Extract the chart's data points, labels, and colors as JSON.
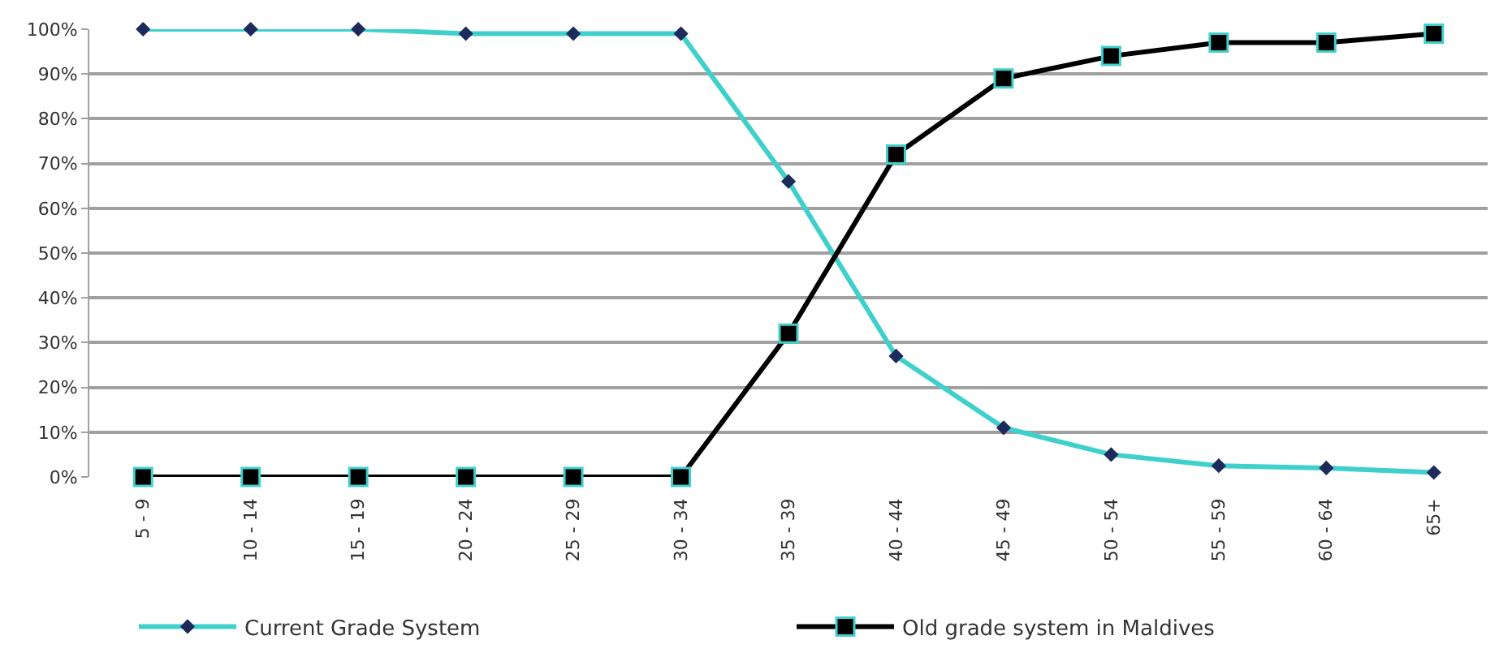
{
  "chart_data": {
    "type": "line",
    "categories": [
      "5 - 9",
      "10 - 14",
      "15 - 19",
      "20 - 24",
      "25 - 29",
      "30 - 34",
      "35 - 39",
      "40 - 44",
      "45 - 49",
      "50 - 54",
      "55 - 59",
      "60 - 64",
      "65+"
    ],
    "series": [
      {
        "name": "Current Grade System",
        "color": "#40d0cc",
        "marker": "diamond",
        "values": [
          100,
          100,
          100,
          99,
          99,
          99,
          66,
          27,
          11,
          5,
          2.5,
          2,
          1
        ]
      },
      {
        "name": "Old grade system in Maldives",
        "color": "#000000",
        "marker": "square",
        "values": [
          0,
          0,
          0,
          0,
          0,
          0,
          32,
          72,
          89,
          94,
          97,
          97,
          99
        ]
      }
    ],
    "ylim": [
      0,
      100
    ],
    "yticks": [
      {
        "value": 0,
        "label": "0%"
      },
      {
        "value": 10,
        "label": "10%"
      },
      {
        "value": 20,
        "label": "20%"
      },
      {
        "value": 30,
        "label": "30%"
      },
      {
        "value": 40,
        "label": "40%"
      },
      {
        "value": 50,
        "label": "50%"
      },
      {
        "value": 60,
        "label": "60%"
      },
      {
        "value": 70,
        "label": "70%"
      },
      {
        "value": 80,
        "label": "80%"
      },
      {
        "value": 90,
        "label": "90%"
      },
      {
        "value": 100,
        "label": "100%"
      }
    ],
    "grid": "y",
    "legend": "bottom",
    "line_style": "solid"
  }
}
